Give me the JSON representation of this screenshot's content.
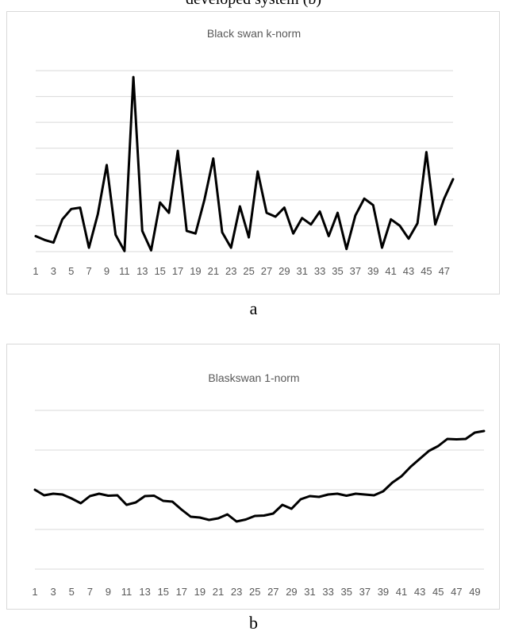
{
  "caption_top": "developed system (b)",
  "panels": [
    {
      "label": "a"
    },
    {
      "label": "b"
    }
  ],
  "chart_data": [
    {
      "type": "line",
      "title": "Black swan k-norm",
      "xlabel": "",
      "ylabel": "",
      "grid": true,
      "legend": "none",
      "y_tick_labels_shown": false,
      "ylim": [
        0,
        7
      ],
      "x_ticks_shown": [
        1,
        3,
        5,
        7,
        9,
        11,
        13,
        15,
        17,
        19,
        21,
        23,
        25,
        27,
        29,
        31,
        33,
        35,
        37,
        39,
        41,
        43,
        45,
        47
      ],
      "series": [
        {
          "color": "#000000",
          "x": [
            1,
            2,
            3,
            4,
            5,
            6,
            7,
            8,
            9,
            10,
            11,
            12,
            13,
            14,
            15,
            16,
            17,
            18,
            19,
            20,
            21,
            22,
            23,
            24,
            25,
            26,
            27,
            28,
            29,
            30,
            31,
            32,
            33,
            34,
            35,
            36,
            37,
            38,
            39,
            40,
            41,
            42,
            43,
            44,
            45,
            46,
            47,
            48
          ],
          "values": [
            0.6,
            0.45,
            0.35,
            1.25,
            1.65,
            1.7,
            0.15,
            1.45,
            3.35,
            0.65,
            0.02,
            6.75,
            0.8,
            0.05,
            1.9,
            1.5,
            3.9,
            0.8,
            0.7,
            2.0,
            3.6,
            0.75,
            0.15,
            1.75,
            0.55,
            3.1,
            1.5,
            1.35,
            1.7,
            0.7,
            1.3,
            1.05,
            1.55,
            0.6,
            1.5,
            0.1,
            1.4,
            2.05,
            1.8,
            0.15,
            1.25,
            1.0,
            0.5,
            1.1,
            3.85,
            1.05,
            2.05,
            2.8
          ]
        }
      ]
    },
    {
      "type": "line",
      "title": "Blaskswan 1-norm",
      "xlabel": "",
      "ylabel": "",
      "grid": true,
      "legend": "none",
      "y_tick_labels_shown": false,
      "ylim": [
        0,
        4
      ],
      "x_ticks_shown": [
        1,
        3,
        5,
        7,
        9,
        11,
        13,
        15,
        17,
        19,
        21,
        23,
        25,
        27,
        29,
        31,
        33,
        35,
        37,
        39,
        41,
        43,
        45,
        47,
        49
      ],
      "series": [
        {
          "color": "#000000",
          "x": [
            1,
            2,
            3,
            4,
            5,
            6,
            7,
            8,
            9,
            10,
            11,
            12,
            13,
            14,
            15,
            16,
            17,
            18,
            19,
            20,
            21,
            22,
            23,
            24,
            25,
            26,
            27,
            28,
            29,
            30,
            31,
            32,
            33,
            34,
            35,
            36,
            37,
            38,
            39,
            40,
            41,
            42,
            43,
            44,
            45,
            46,
            47,
            48,
            49,
            50
          ],
          "values": [
            2.0,
            1.86,
            1.9,
            1.88,
            1.78,
            1.66,
            1.84,
            1.9,
            1.85,
            1.86,
            1.62,
            1.68,
            1.84,
            1.85,
            1.72,
            1.7,
            1.5,
            1.32,
            1.3,
            1.24,
            1.28,
            1.38,
            1.2,
            1.25,
            1.34,
            1.35,
            1.4,
            1.62,
            1.52,
            1.76,
            1.84,
            1.82,
            1.88,
            1.9,
            1.85,
            1.9,
            1.88,
            1.86,
            1.96,
            2.18,
            2.34,
            2.58,
            2.78,
            2.98,
            3.1,
            3.28,
            3.27,
            3.28,
            3.44,
            3.48
          ]
        }
      ]
    }
  ]
}
